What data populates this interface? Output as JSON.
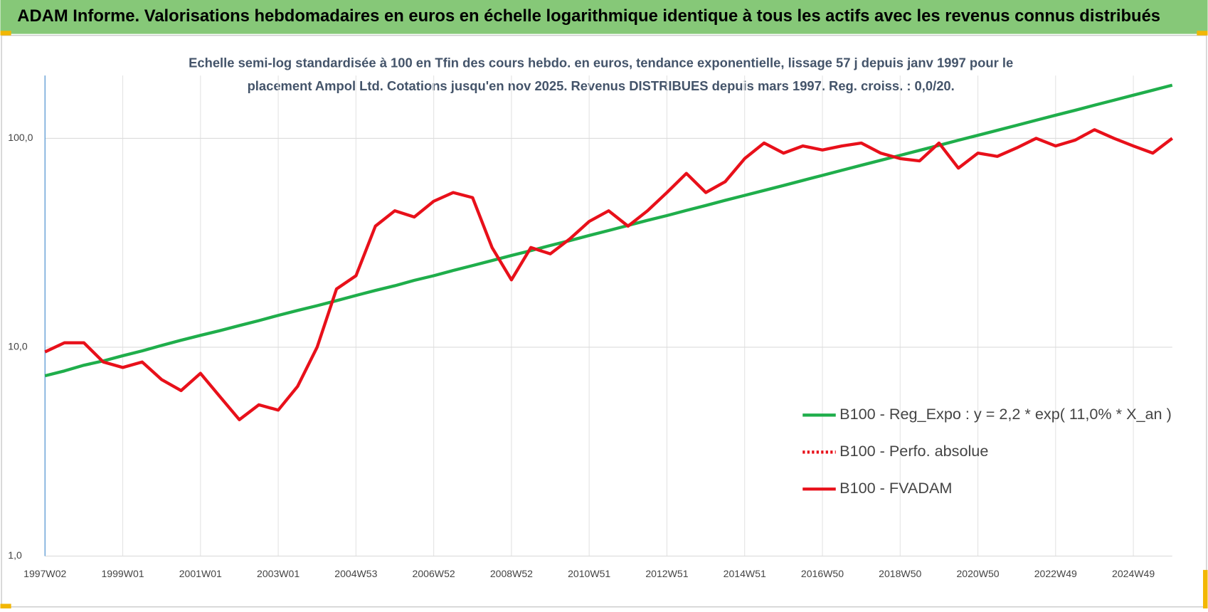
{
  "header": {
    "title": "ADAM Informe. Valorisations hebdomadaires en euros en échelle logarithmique identique à tous les actifs avec les revenus connus distribués"
  },
  "chart_data": {
    "type": "line",
    "subtitle": [
      "Echelle semi-log standardisée à 100 en Tfin des cours hebdo. en euros, tendance exponentielle, lissage 57 j depuis janv 1997 pour le",
      "placement Ampol Ltd. Cotations jusqu'en nov 2025. Revenus DISTRIBUES depuis mars 1997. Reg. croiss. : 0,0/20."
    ],
    "categories": [
      "1997W02",
      null,
      null,
      null,
      "1999W01",
      null,
      null,
      null,
      "2001W01",
      null,
      null,
      null,
      "2003W01",
      null,
      null,
      null,
      "2004W53",
      null,
      null,
      null,
      "2006W52",
      null,
      null,
      null,
      "2008W52",
      null,
      null,
      null,
      "2010W51",
      null,
      null,
      null,
      "2012W51",
      null,
      null,
      null,
      "2014W51",
      null,
      null,
      null,
      "2016W50",
      null,
      null,
      null,
      "2018W50",
      null,
      null,
      null,
      "2020W50",
      null,
      null,
      null,
      "2022W49",
      null,
      null,
      null,
      "2024W49",
      null,
      null
    ],
    "series": [
      {
        "name": "B100 - Reg_Expo : y = 2,2 * exp( 11,0% *  X_an )",
        "color": "#1fae4b",
        "style": "solid",
        "values": [
          7.3,
          7.7,
          8.2,
          8.6,
          9.1,
          9.6,
          10.2,
          10.8,
          11.4,
          12.0,
          12.7,
          13.4,
          14.2,
          15.0,
          15.8,
          16.7,
          17.7,
          18.7,
          19.7,
          20.9,
          22.0,
          23.3,
          24.6,
          26.0,
          27.5,
          29.0,
          30.7,
          32.4,
          34.3,
          36.2,
          38.3,
          40.5,
          42.7,
          45.2,
          47.7,
          50.5,
          53.3,
          56.3,
          59.5,
          62.9,
          66.5,
          70.3,
          74.3,
          78.5,
          82.9,
          87.6,
          92.6,
          97.9,
          103.4,
          109.3,
          115.5,
          122.1,
          129.0,
          136.3,
          144.1,
          152.3,
          160.9,
          170.0,
          179.7
        ]
      },
      {
        "name": "B100 - Perfo. absolue",
        "color": "#e8101a",
        "style": "dotted",
        "values": [
          null,
          null,
          null,
          null,
          null,
          null,
          null,
          null,
          null,
          null,
          null,
          null,
          null,
          null,
          null,
          null,
          null,
          null,
          null,
          null,
          null,
          null,
          null,
          null,
          null,
          null,
          null,
          null,
          null,
          null,
          null,
          null,
          null,
          null,
          null,
          null,
          null,
          null,
          null,
          null,
          null,
          null,
          null,
          null,
          null,
          null,
          null,
          null,
          null,
          null,
          null,
          null,
          null,
          null,
          null,
          null,
          null,
          null,
          null
        ]
      },
      {
        "name": "B100 - FVADAM",
        "color": "#e8101a",
        "style": "solid",
        "values": [
          9.5,
          10.5,
          10.5,
          8.5,
          8,
          8.5,
          7,
          6.2,
          7.5,
          5.8,
          4.5,
          5.3,
          5,
          6.5,
          10,
          19,
          22,
          38,
          45,
          42,
          50,
          55,
          52,
          30,
          21,
          30,
          28,
          33,
          40,
          45,
          38,
          45,
          55,
          68,
          55,
          62,
          80,
          95,
          85,
          92,
          88,
          92,
          95,
          85,
          80,
          78,
          95,
          72,
          85,
          82,
          90,
          100,
          92,
          98,
          110,
          100,
          92,
          85,
          100
        ]
      }
    ],
    "log_scale": true,
    "ylim": [
      1,
      200
    ],
    "yticks": [
      {
        "value": 1,
        "label": "1,0"
      },
      {
        "value": 10,
        "label": "10,0"
      },
      {
        "value": 100,
        "label": "100,0"
      }
    ],
    "grid": true,
    "legend_position": "lower right"
  }
}
